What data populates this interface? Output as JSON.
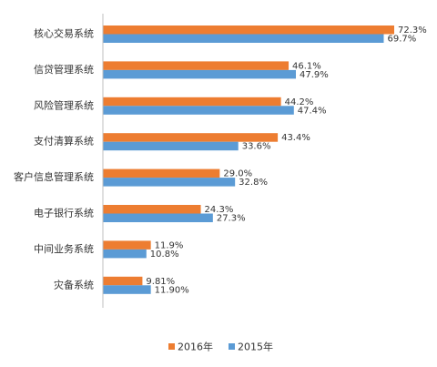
{
  "chart_data": {
    "type": "bar",
    "orientation": "horizontal",
    "categories": [
      "核心交易系统",
      "信贷管理系统",
      "风险管理系统",
      "支付清算系统",
      "客户信息管理系统",
      "电子银行系统",
      "中间业务系统",
      "灾备系统"
    ],
    "series": [
      {
        "name": "2016年",
        "color": "#ED7D31",
        "values": [
          72.3,
          46.1,
          44.2,
          43.4,
          29.0,
          24.3,
          11.9,
          9.81
        ],
        "labels": [
          "72.3%",
          "46.1%",
          "44.2%",
          "43.4%",
          "29.0%",
          "24.3%",
          "11.9%",
          "9.81%"
        ]
      },
      {
        "name": "2015年",
        "color": "#5B9BD5",
        "values": [
          69.7,
          47.9,
          47.4,
          33.6,
          32.8,
          27.3,
          10.8,
          11.9
        ],
        "labels": [
          "69.7%",
          "47.9%",
          "47.4%",
          "33.6%",
          "32.8%",
          "27.3%",
          "10.8%",
          "11.90%"
        ]
      }
    ],
    "title": "",
    "xlabel": "",
    "ylabel": "",
    "xlim": [
      0,
      80
    ],
    "grid": false,
    "legend_position": "bottom"
  }
}
